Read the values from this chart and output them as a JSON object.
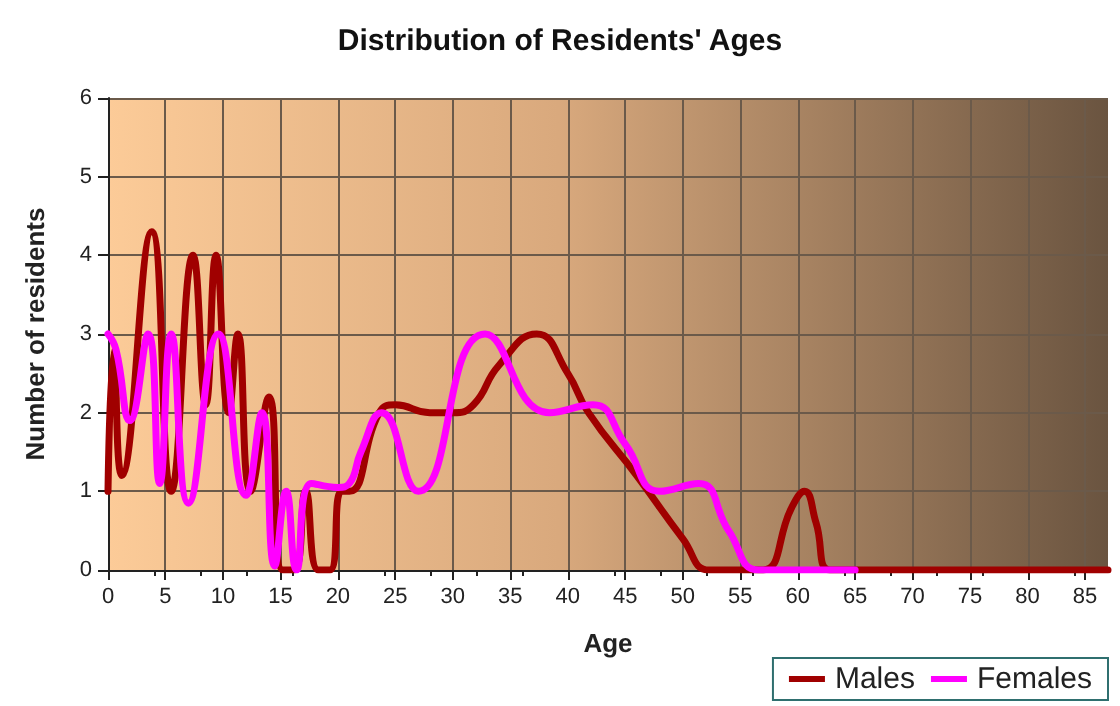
{
  "chart_data": {
    "type": "line",
    "title": "Distribution of Residents' Ages",
    "xlabel": "Age",
    "ylabel": "Number of residents",
    "xlim": [
      0,
      87
    ],
    "xticks": [
      0,
      5,
      10,
      15,
      20,
      25,
      30,
      35,
      40,
      45,
      50,
      55,
      60,
      65,
      70,
      75,
      80,
      85
    ],
    "ylim": [
      0,
      6
    ],
    "yticks": [
      0,
      1,
      2,
      3,
      4,
      5,
      6
    ],
    "grid": true,
    "legend": "bottom right",
    "marker": "none",
    "line_style": "solid",
    "series": [
      {
        "name": "Males",
        "color": "#a00000",
        "x": [
          0,
          0.5,
          1.2,
          3.8,
          5.5,
          7.4,
          8.5,
          9.4,
          10.5,
          11.3,
          12.4,
          14,
          15.2,
          16.2,
          17.2,
          18.3,
          19.3,
          20.3,
          21,
          23.6,
          25,
          28,
          30,
          31.8,
          34,
          37.3,
          40,
          41.8,
          46,
          50,
          52.3,
          55,
          57,
          59.5,
          60.6,
          61.6,
          62.8,
          65,
          70,
          75,
          80,
          87
        ],
        "values": [
          1,
          2.8,
          1.2,
          4.3,
          1,
          4,
          2.1,
          4,
          2,
          3,
          1,
          2.2,
          0,
          0,
          1,
          0,
          0,
          1,
          1,
          2,
          2.1,
          2,
          2,
          2.1,
          2.6,
          3,
          2.5,
          2,
          1.2,
          0.4,
          0,
          0,
          0,
          0.8,
          1,
          0.6,
          0,
          0,
          0,
          0,
          0,
          0
        ]
      },
      {
        "name": "Females",
        "color": "#ff00ff",
        "x": [
          0,
          0.7,
          1.9,
          3.5,
          4.5,
          5.5,
          7,
          9.6,
          12,
          13.4,
          14.5,
          15.5,
          16.4,
          17.7,
          20,
          21,
          22,
          23.8,
          27,
          32.8,
          38.4,
          42.2,
          45,
          48,
          51.4,
          54,
          56.6,
          60,
          65
        ],
        "values": [
          3,
          2.8,
          1.9,
          3,
          1.1,
          3,
          0.85,
          3,
          0.95,
          2,
          0.05,
          1,
          0,
          1.1,
          1.05,
          1.1,
          1.5,
          2,
          1,
          3,
          2,
          2.1,
          1.6,
          1,
          1.1,
          0.5,
          0,
          0,
          0
        ]
      }
    ]
  }
}
